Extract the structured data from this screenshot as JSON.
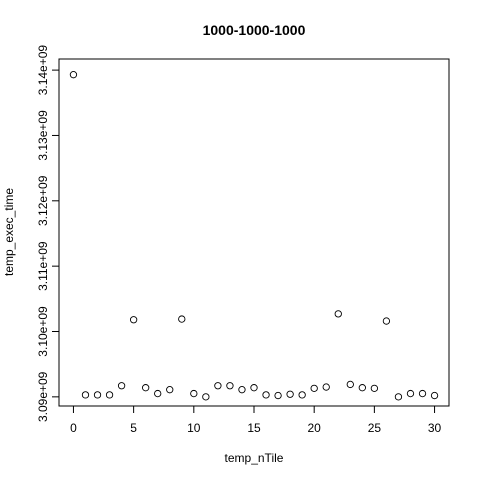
{
  "chart_data": {
    "type": "scatter",
    "title": "1000-1000-1000",
    "xlabel": "temp_nTile",
    "ylabel": "temp_exec_time",
    "xlim": [
      -1.2,
      31.2
    ],
    "ylim": [
      3088600000.0,
      3141700000.0
    ],
    "x_ticks": [
      0,
      5,
      10,
      15,
      20,
      25,
      30
    ],
    "x_tick_labels": [
      "0",
      "5",
      "10",
      "15",
      "20",
      "25",
      "30"
    ],
    "y_ticks": [
      3090000000.0,
      3100000000.0,
      3110000000.0,
      3120000000.0,
      3130000000.0,
      3140000000.0
    ],
    "y_tick_labels": [
      "3.09e+09",
      "3.10e+09",
      "3.11e+09",
      "3.12e+09",
      "3.13e+09",
      "3.14e+09"
    ],
    "grid": false,
    "marker": "open-circle",
    "color": "#000000",
    "x": [
      0,
      1,
      2,
      3,
      4,
      5,
      6,
      7,
      8,
      9,
      10,
      11,
      12,
      13,
      14,
      15,
      16,
      17,
      18,
      19,
      20,
      21,
      22,
      23,
      24,
      25,
      26,
      27,
      28,
      29,
      30
    ],
    "y": [
      3139300000.0,
      3090300000.0,
      3090300000.0,
      3090300000.0,
      3091700000.0,
      3101800000.0,
      3091400000.0,
      3090500000.0,
      3091100000.0,
      3101900000.0,
      3090500000.0,
      3090000000.0,
      3091700000.0,
      3091700000.0,
      3091100000.0,
      3091400000.0,
      3090300000.0,
      3090200000.0,
      3090400000.0,
      3090300000.0,
      3091300000.0,
      3091500000.0,
      3102700000.0,
      3091900000.0,
      3091400000.0,
      3091300000.0,
      3101600000.0,
      3090000000.0,
      3090500000.0,
      3090500000.0,
      3090200000.0
    ]
  }
}
